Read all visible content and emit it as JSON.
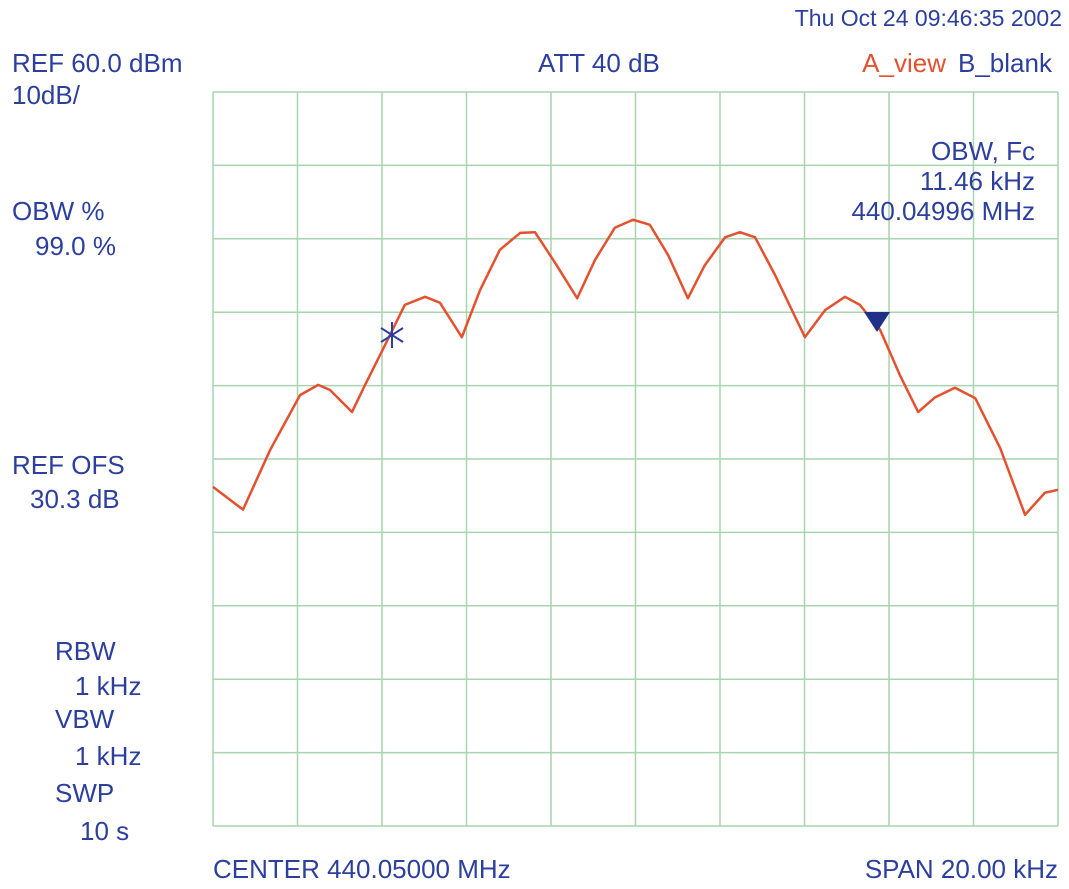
{
  "chart_data": {
    "type": "line",
    "xlim": [
      440.04,
      440.06
    ],
    "xticks": [
      440.04,
      440.042,
      440.044,
      440.046,
      440.048,
      440.05,
      440.052,
      440.054,
      440.056,
      440.058,
      440.06
    ],
    "ylim": [
      -40,
      60
    ],
    "yticks": [
      60,
      50,
      40,
      30,
      20,
      10,
      0,
      -10,
      -20,
      -30,
      -40
    ],
    "grid": true,
    "series": [
      {
        "color": "#e4512f",
        "x": [
          440.04,
          440.04071,
          440.04135,
          440.04206,
          440.04249,
          440.04277,
          440.04329,
          440.0436,
          440.04407,
          440.04454,
          440.04502,
          440.04537,
          440.04589,
          440.04632,
          440.04679,
          440.04727,
          440.04762,
          440.04809,
          440.04862,
          440.04904,
          440.04951,
          440.04994,
          440.05034,
          440.05077,
          440.05124,
          440.05164,
          440.05212,
          440.05247,
          440.05283,
          440.0533,
          440.05401,
          440.05449,
          440.05496,
          440.05531,
          440.05579,
          440.05626,
          440.05669,
          440.05709,
          440.05756,
          440.05804,
          440.05863,
          440.05922,
          440.05969,
          440.06
        ],
        "values": [
          6.2,
          3.1,
          11.2,
          18.7,
          20.1,
          19.4,
          16.4,
          20.1,
          25.5,
          31.0,
          32.1,
          31.3,
          26.6,
          33.0,
          38.5,
          40.8,
          40.9,
          36.8,
          31.9,
          37.1,
          41.5,
          42.6,
          41.9,
          37.8,
          31.9,
          36.4,
          40.2,
          40.9,
          40.2,
          35.1,
          26.6,
          30.3,
          32.1,
          31.0,
          27.6,
          21.4,
          16.4,
          18.4,
          19.7,
          18.3,
          11.5,
          2.4,
          5.4,
          5.8
        ]
      }
    ],
    "annotations": [
      "Thu Oct 24 09:46:35 2002",
      "REF 60.0 dBm",
      "10dB/",
      "ATT 40 dB",
      "A_view",
      "B_blank",
      "OBW, Fc",
      "11.46 kHz",
      "440.04996 MHz",
      "OBW %",
      "99.0 %",
      "REF OFS",
      "30.3 dB",
      "RBW",
      "1 kHz",
      "VBW",
      "1 kHz",
      "SWP",
      "10 s",
      "CENTER 440.05000 MHz",
      "SPAN 20.00 kHz"
    ]
  }
}
